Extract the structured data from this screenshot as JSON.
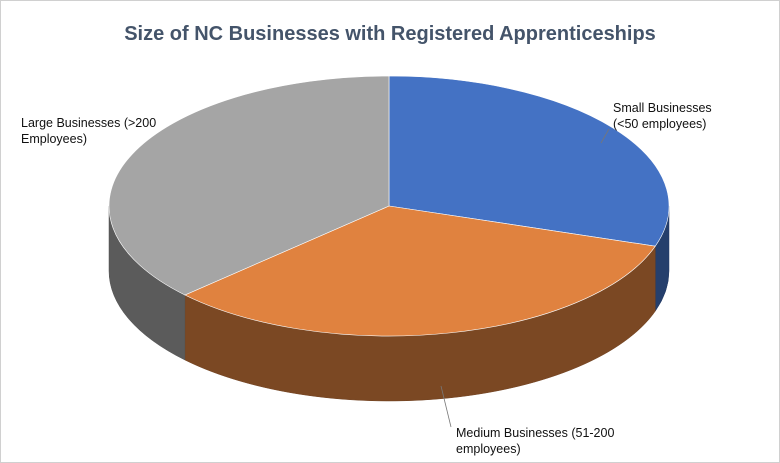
{
  "chart_data": {
    "type": "pie3d",
    "title": "Size of NC Businesses with Registered Apprenticeships",
    "categories": [
      "Small Businesses (<50 employees)",
      "Medium Businesses (51-200 employees)",
      "Large Businesses (>200 Employees)"
    ],
    "values": [
      30,
      33,
      37
    ],
    "colors": [
      "#4472c4",
      "#e0823f",
      "#a5a5a5"
    ]
  }
}
